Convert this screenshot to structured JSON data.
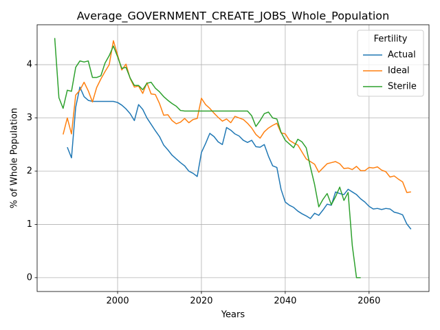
{
  "chart_data": {
    "type": "line",
    "title": "Average_GOVERNMENT_CREATE_JOBS_Whole_Population",
    "xlabel": "Years",
    "ylabel": "% of Whole Population",
    "legend_title": "Fertility",
    "legend": "upper right",
    "grid": true,
    "xlim": [
      1980.8,
      2074.3
    ],
    "ylim": [
      -0.26,
      4.75
    ],
    "xticks": [
      2000,
      2020,
      2040,
      2060
    ],
    "yticks": [
      0,
      1,
      2,
      3,
      4
    ],
    "x": [
      1985,
      1986,
      1987,
      1988,
      1989,
      1990,
      1991,
      1992,
      1993,
      1994,
      1995,
      1996,
      1997,
      1998,
      1999,
      2000,
      2001,
      2002,
      2003,
      2004,
      2005,
      2006,
      2007,
      2008,
      2009,
      2010,
      2011,
      2012,
      2013,
      2014,
      2015,
      2016,
      2017,
      2018,
      2019,
      2020,
      2021,
      2022,
      2023,
      2024,
      2025,
      2026,
      2027,
      2028,
      2029,
      2030,
      2031,
      2032,
      2033,
      2034,
      2035,
      2036,
      2037,
      2038,
      2039,
      2040,
      2041,
      2042,
      2043,
      2044,
      2045,
      2046,
      2047,
      2048,
      2049,
      2050,
      2051,
      2052,
      2053,
      2054,
      2055,
      2056,
      2057,
      2058,
      2059,
      2060,
      2061,
      2062,
      2063,
      2064,
      2065,
      2066,
      2067,
      2068,
      2069,
      2070
    ],
    "series": [
      {
        "name": "Actual",
        "color": "#1f77b4",
        "values": [
          null,
          null,
          null,
          2.45,
          2.25,
          3.2,
          3.58,
          3.4,
          3.33,
          3.31,
          3.31,
          3.31,
          3.31,
          3.31,
          3.31,
          3.29,
          3.24,
          3.17,
          3.08,
          2.95,
          3.25,
          3.16,
          3.0,
          2.88,
          2.76,
          2.65,
          2.49,
          2.4,
          2.3,
          2.23,
          2.16,
          2.1,
          2.0,
          1.96,
          1.9,
          2.35,
          2.52,
          2.71,
          2.65,
          2.55,
          2.5,
          2.82,
          2.77,
          2.7,
          2.66,
          2.58,
          2.54,
          2.58,
          2.46,
          2.45,
          2.5,
          2.28,
          2.1,
          2.07,
          1.66,
          1.42,
          1.36,
          1.32,
          1.25,
          1.2,
          1.16,
          1.11,
          1.21,
          1.17,
          1.27,
          1.38,
          1.36,
          1.61,
          1.58,
          1.56,
          1.66,
          1.61,
          1.56,
          1.48,
          1.42,
          1.34,
          1.29,
          1.3,
          1.28,
          1.3,
          1.29,
          1.23,
          1.21,
          1.18,
          1.01,
          0.91
        ]
      },
      {
        "name": "Ideal",
        "color": "#ff7f0e",
        "values": [
          null,
          null,
          2.69,
          3.0,
          2.7,
          3.43,
          3.52,
          3.67,
          3.51,
          3.3,
          3.57,
          3.73,
          3.87,
          4.0,
          4.45,
          4.18,
          3.9,
          4.01,
          3.74,
          3.58,
          3.6,
          3.46,
          3.66,
          3.45,
          3.44,
          3.27,
          3.05,
          3.06,
          2.95,
          2.89,
          2.92,
          2.99,
          2.91,
          2.97,
          2.99,
          3.37,
          3.25,
          3.18,
          3.09,
          3.01,
          2.94,
          2.98,
          2.91,
          3.03,
          3.0,
          2.97,
          2.9,
          2.81,
          2.69,
          2.62,
          2.74,
          2.81,
          2.86,
          2.9,
          2.72,
          2.7,
          2.58,
          2.53,
          2.49,
          2.36,
          2.23,
          2.18,
          2.13,
          1.98,
          2.06,
          2.14,
          2.16,
          2.18,
          2.14,
          2.05,
          2.06,
          2.03,
          2.09,
          2.01,
          2.01,
          2.07,
          2.06,
          2.08,
          2.02,
          1.99,
          1.89,
          1.91,
          1.85,
          1.8,
          1.6,
          1.61
        ]
      },
      {
        "name": "Sterile",
        "color": "#2ca02c",
        "values": [
          4.5,
          3.38,
          3.18,
          3.52,
          3.5,
          3.95,
          4.07,
          4.05,
          4.07,
          3.76,
          3.76,
          3.79,
          4.03,
          4.17,
          4.35,
          4.15,
          3.93,
          3.95,
          3.75,
          3.61,
          3.61,
          3.53,
          3.65,
          3.67,
          3.56,
          3.49,
          3.4,
          3.33,
          3.27,
          3.22,
          3.14,
          3.13,
          3.13,
          3.13,
          3.13,
          3.13,
          3.13,
          3.13,
          3.13,
          3.13,
          3.13,
          3.13,
          3.13,
          3.13,
          3.13,
          3.13,
          3.13,
          3.04,
          2.84,
          2.95,
          3.08,
          3.11,
          3.0,
          2.98,
          2.73,
          2.58,
          2.51,
          2.44,
          2.6,
          2.55,
          2.44,
          2.08,
          1.75,
          1.33,
          1.47,
          1.58,
          1.37,
          1.52,
          1.7,
          1.45,
          1.6,
          0.6,
          0,
          0,
          null,
          null,
          null,
          null,
          null,
          null,
          null,
          null,
          null,
          null,
          null,
          null
        ]
      }
    ]
  }
}
